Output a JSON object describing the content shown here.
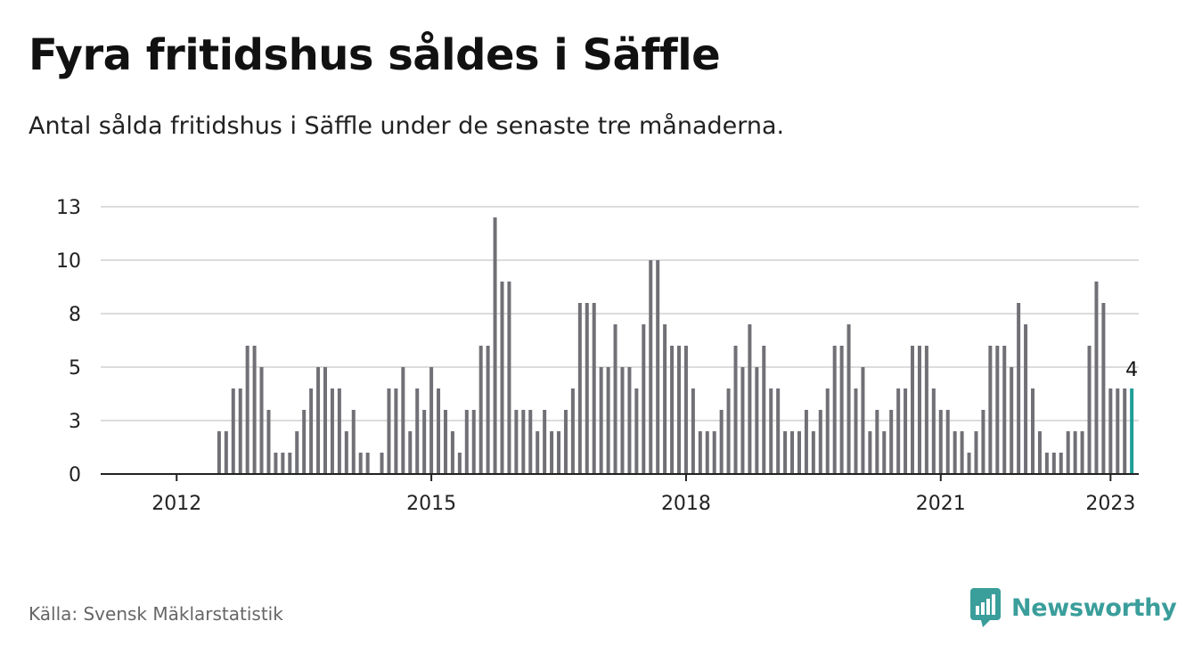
{
  "title": "Fyra fritidshus såldes i Säffle",
  "subtitle": "Antal sålda fritidshus i Säffle under de senaste tre månaderna.",
  "source": "Källa: Svensk Mäklarstatistik",
  "brand": "Newsworthy",
  "colors": {
    "bar": "#707076",
    "highlight": "#1e9e96",
    "grid": "#dcdcdc",
    "brand": "#3a9e9b"
  },
  "chart_data": {
    "type": "bar",
    "title": "Fyra fritidshus såldes i Säffle",
    "subtitle": "Antal sålda fritidshus i Säffle under de senaste tre månaderna.",
    "xlabel": "",
    "ylabel": "",
    "ylim": [
      0,
      12.5
    ],
    "yticks": [
      0,
      2.5,
      5,
      7.5,
      10,
      12.5
    ],
    "ytick_labels": [
      "0",
      "3",
      "5",
      "8",
      "10",
      "13"
    ],
    "xticks": [
      "2012",
      "2015",
      "2018",
      "2021",
      "2023"
    ],
    "grid": true,
    "start": "2011-09",
    "end": "2023-01",
    "frequency": "monthly",
    "values": [
      0,
      0,
      0,
      0,
      0,
      0,
      0,
      0,
      0,
      0,
      2,
      2,
      4,
      4,
      6,
      6,
      5,
      3,
      1,
      1,
      1,
      2,
      3,
      4,
      5,
      5,
      4,
      4,
      2,
      3,
      1,
      1,
      0,
      1,
      4,
      4,
      5,
      2,
      4,
      3,
      5,
      4,
      3,
      2,
      1,
      3,
      3,
      6,
      6,
      12,
      9,
      9,
      3,
      3,
      3,
      2,
      3,
      2,
      2,
      3,
      4,
      8,
      8,
      8,
      5,
      5,
      7,
      5,
      5,
      4,
      7,
      10,
      10,
      7,
      6,
      6,
      6,
      4,
      2,
      2,
      2,
      3,
      4,
      6,
      5,
      7,
      5,
      6,
      4,
      4,
      2,
      2,
      2,
      3,
      2,
      3,
      4,
      6,
      6,
      7,
      4,
      5,
      2,
      3,
      2,
      3,
      4,
      4,
      6,
      6,
      6,
      4,
      3,
      3,
      2,
      2,
      1,
      2,
      3,
      6,
      6,
      6,
      5,
      8,
      7,
      4,
      2,
      1,
      1,
      1,
      2,
      2,
      2,
      6,
      9,
      8,
      4,
      4,
      4,
      4
    ],
    "highlight": {
      "label": "4",
      "value": 4
    }
  }
}
